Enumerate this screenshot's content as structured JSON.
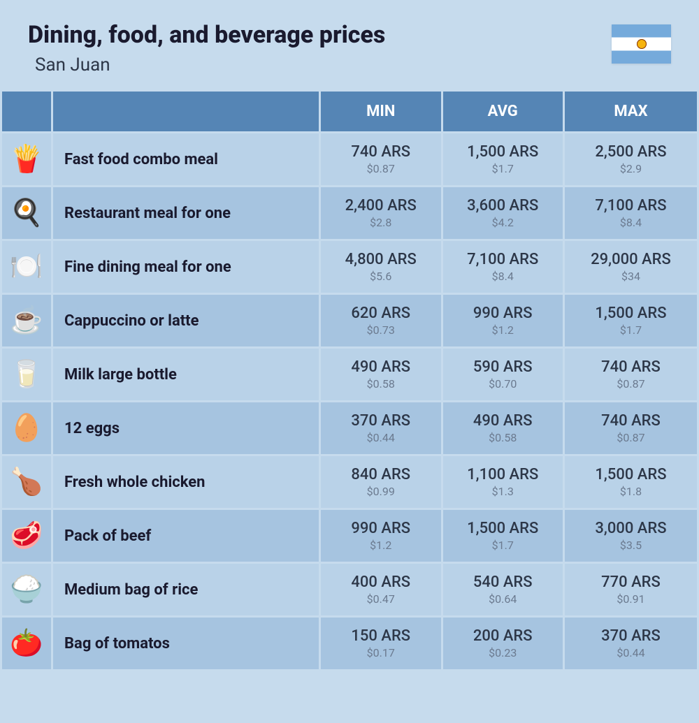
{
  "header": {
    "title": "Dining, food, and beverage prices",
    "subtitle": "San Juan"
  },
  "columns": {
    "min": "MIN",
    "avg": "AVG",
    "max": "MAX"
  },
  "table": {
    "header_bg": "#5585b5",
    "header_fg": "#ffffff",
    "row_even_bg": "#b9d2e8",
    "row_odd_bg": "#a6c4e0",
    "page_bg": "#c6dbed",
    "ars_color": "#2d3748",
    "usd_color": "#6b7a8f"
  },
  "rows": [
    {
      "icon": "🍟",
      "name": "Fast food combo meal",
      "min_ars": "740 ARS",
      "min_usd": "$0.87",
      "avg_ars": "1,500 ARS",
      "avg_usd": "$1.7",
      "max_ars": "2,500 ARS",
      "max_usd": "$2.9"
    },
    {
      "icon": "🍳",
      "name": "Restaurant meal for one",
      "min_ars": "2,400 ARS",
      "min_usd": "$2.8",
      "avg_ars": "3,600 ARS",
      "avg_usd": "$4.2",
      "max_ars": "7,100 ARS",
      "max_usd": "$8.4"
    },
    {
      "icon": "🍽️",
      "name": "Fine dining meal for one",
      "min_ars": "4,800 ARS",
      "min_usd": "$5.6",
      "avg_ars": "7,100 ARS",
      "avg_usd": "$8.4",
      "max_ars": "29,000 ARS",
      "max_usd": "$34"
    },
    {
      "icon": "☕",
      "name": "Cappuccino or latte",
      "min_ars": "620 ARS",
      "min_usd": "$0.73",
      "avg_ars": "990 ARS",
      "avg_usd": "$1.2",
      "max_ars": "1,500 ARS",
      "max_usd": "$1.7"
    },
    {
      "icon": "🥛",
      "name": "Milk large bottle",
      "min_ars": "490 ARS",
      "min_usd": "$0.58",
      "avg_ars": "590 ARS",
      "avg_usd": "$0.70",
      "max_ars": "740 ARS",
      "max_usd": "$0.87"
    },
    {
      "icon": "🥚",
      "name": "12 eggs",
      "min_ars": "370 ARS",
      "min_usd": "$0.44",
      "avg_ars": "490 ARS",
      "avg_usd": "$0.58",
      "max_ars": "740 ARS",
      "max_usd": "$0.87"
    },
    {
      "icon": "🍗",
      "name": "Fresh whole chicken",
      "min_ars": "840 ARS",
      "min_usd": "$0.99",
      "avg_ars": "1,100 ARS",
      "avg_usd": "$1.3",
      "max_ars": "1,500 ARS",
      "max_usd": "$1.8"
    },
    {
      "icon": "🥩",
      "name": "Pack of beef",
      "min_ars": "990 ARS",
      "min_usd": "$1.2",
      "avg_ars": "1,500 ARS",
      "avg_usd": "$1.7",
      "max_ars": "3,000 ARS",
      "max_usd": "$3.5"
    },
    {
      "icon": "🍚",
      "name": "Medium bag of rice",
      "min_ars": "400 ARS",
      "min_usd": "$0.47",
      "avg_ars": "540 ARS",
      "avg_usd": "$0.64",
      "max_ars": "770 ARS",
      "max_usd": "$0.91"
    },
    {
      "icon": "🍅",
      "name": "Bag of tomatos",
      "min_ars": "150 ARS",
      "min_usd": "$0.17",
      "avg_ars": "200 ARS",
      "avg_usd": "$0.23",
      "max_ars": "370 ARS",
      "max_usd": "$0.44"
    }
  ]
}
